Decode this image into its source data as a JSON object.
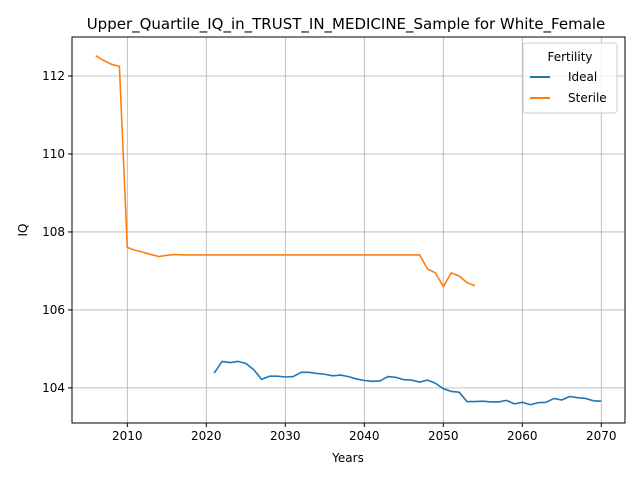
{
  "chart_data": {
    "type": "line",
    "title": "Upper_Quartile_IQ_in_TRUST_IN_MEDICINE_Sample for White_Female",
    "xlabel": "Years",
    "ylabel": "IQ",
    "xlim": [
      2003,
      2073
    ],
    "ylim": [
      103.1,
      113.0
    ],
    "xticks": [
      2010,
      2020,
      2030,
      2040,
      2050,
      2060,
      2070
    ],
    "yticks": [
      104,
      106,
      108,
      110,
      112
    ],
    "grid": true,
    "legend": {
      "title": "Fertility",
      "position": "top-right"
    },
    "series": [
      {
        "name": "Ideal",
        "color": "#1f77b4",
        "x": [
          2021,
          2022,
          2023,
          2024,
          2025,
          2026,
          2027,
          2028,
          2029,
          2030,
          2031,
          2032,
          2033,
          2034,
          2035,
          2036,
          2037,
          2038,
          2039,
          2040,
          2041,
          2042,
          2043,
          2044,
          2045,
          2046,
          2047,
          2048,
          2049,
          2050,
          2051,
          2052,
          2053,
          2054,
          2055,
          2056,
          2057,
          2058,
          2059,
          2060,
          2061,
          2062,
          2063,
          2064,
          2065,
          2066,
          2067,
          2068,
          2069,
          2070
        ],
        "values": [
          104.38,
          104.68,
          104.65,
          104.68,
          104.63,
          104.47,
          104.22,
          104.3,
          104.3,
          104.28,
          104.29,
          104.4,
          104.4,
          104.37,
          104.35,
          104.31,
          104.33,
          104.29,
          104.23,
          104.19,
          104.17,
          104.18,
          104.29,
          104.27,
          104.21,
          104.2,
          104.15,
          104.2,
          104.12,
          103.98,
          103.91,
          103.89,
          103.65,
          103.65,
          103.66,
          103.64,
          103.64,
          103.68,
          103.59,
          103.63,
          103.57,
          103.62,
          103.63,
          103.73,
          103.69,
          103.78,
          103.75,
          103.73,
          103.67,
          103.66
        ]
      },
      {
        "name": "Sterile",
        "color": "#ff7f0e",
        "x": [
          2006,
          2007,
          2008,
          2009,
          2010,
          2011,
          2012,
          2013,
          2014,
          2015,
          2016,
          2017,
          2018,
          2019,
          2020,
          2021,
          2022,
          2023,
          2024,
          2025,
          2026,
          2027,
          2028,
          2029,
          2030,
          2031,
          2032,
          2033,
          2034,
          2035,
          2036,
          2037,
          2038,
          2039,
          2040,
          2041,
          2042,
          2043,
          2044,
          2045,
          2046,
          2047,
          2048,
          2049,
          2050,
          2051,
          2052,
          2053,
          2054
        ],
        "values": [
          112.52,
          112.4,
          112.3,
          112.25,
          107.6,
          107.53,
          107.48,
          107.42,
          107.37,
          107.4,
          107.42,
          107.41,
          107.41,
          107.41,
          107.41,
          107.41,
          107.41,
          107.41,
          107.41,
          107.41,
          107.41,
          107.41,
          107.41,
          107.41,
          107.41,
          107.41,
          107.41,
          107.41,
          107.41,
          107.41,
          107.41,
          107.41,
          107.41,
          107.41,
          107.41,
          107.41,
          107.41,
          107.41,
          107.41,
          107.41,
          107.41,
          107.41,
          107.05,
          106.95,
          106.6,
          106.95,
          106.87,
          106.7,
          106.62
        ]
      }
    ]
  }
}
